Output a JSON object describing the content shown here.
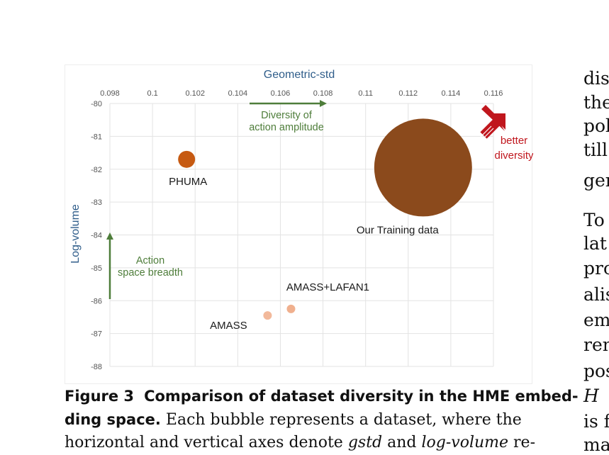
{
  "chart_data": {
    "type": "bubble",
    "title": "Geometric-std",
    "xlabel": "Geometric-std",
    "ylabel": "Log-volume",
    "xlim": [
      0.098,
      0.116
    ],
    "ylim": [
      -88,
      -80
    ],
    "x_ticks": [
      "0.098",
      "0.1",
      "0.102",
      "0.104",
      "0.106",
      "0.108",
      "0.11",
      "0.112",
      "0.114",
      "0.116"
    ],
    "y_ticks": [
      "-80",
      "-81",
      "-82",
      "-83",
      "-84",
      "-85",
      "-86",
      "-87",
      "-88"
    ],
    "grid": true,
    "series": [
      {
        "name": "PHUMA",
        "x": 0.1016,
        "y": -81.7,
        "size": 12,
        "color": "#c65a12"
      },
      {
        "name": "Our Training data",
        "x": 0.1127,
        "y": -81.95,
        "size": 69,
        "color": "#8b4a1c"
      },
      {
        "name": "AMASS+LAFAN1",
        "x": 0.1065,
        "y": -86.25,
        "size": 6,
        "color": "#f0b08e"
      },
      {
        "name": "AMASS",
        "x": 0.1054,
        "y": -86.45,
        "size": 6,
        "color": "#f2b99b"
      }
    ],
    "annotations": {
      "x_arrow": [
        "Diversity of",
        "action amplitude"
      ],
      "y_arrow": [
        "Action",
        "space breadth"
      ],
      "better": [
        "better",
        "diversity"
      ]
    },
    "colors": {
      "axis_title": "#2f5d8a",
      "arrow_green": "#4e7d3a",
      "better_red": "#c0161d",
      "grid": "#e3e3e3",
      "tick": "#555555"
    }
  },
  "caption": {
    "label": "Figure 3",
    "title_line1": "Comparison of dataset diversity in the HME embed-",
    "title_line2": "ding space.",
    "text_line2": " Each bubble represents a dataset, where the",
    "line3_a": "horizontal and vertical axes denote ",
    "line3_astd": "gstd",
    "line3_b": " and ",
    "line3_logvol": "log-volume",
    "line3_c": " re-"
  },
  "side_text": [
    "dis",
    "the",
    "pol",
    "till",
    "gen",
    "To",
    "lat",
    "pro",
    "alis",
    "em",
    "ren",
    "pos",
    "H",
    "is f",
    "ma"
  ]
}
